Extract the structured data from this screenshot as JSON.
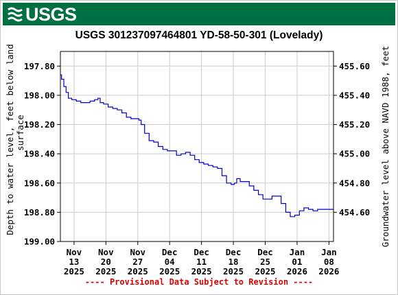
{
  "header": {
    "logo_text": "USGS",
    "banner_color": "#006f41"
  },
  "title": "USGS 301237097464801 YD-58-50-301 (Lovelady)",
  "footer": {
    "text": "---- Provisional Data Subject to Revision ----",
    "color": "#dd0000"
  },
  "chart_data": {
    "type": "line",
    "title": "USGS 301237097464801 YD-58-50-301 (Lovelady)",
    "xlabel": "",
    "ylabel": "Depth to water level, feet below land surface",
    "ylabel_right": "Groundwater level above NAVD 1988, feet",
    "y_inverted": true,
    "ylim": [
      197.7,
      199.0
    ],
    "xlim": [
      "2025-11-10",
      "2026-01-09"
    ],
    "y_ticks": [
      "197.80",
      "198.00",
      "198.20",
      "198.40",
      "198.60",
      "198.80",
      "199.00"
    ],
    "y2_ticks": [
      "455.60",
      "455.40",
      "455.20",
      "455.00",
      "454.80",
      "454.60"
    ],
    "x_ticks": [
      {
        "date": "2025-11-13",
        "label": [
          "Nov",
          "13",
          "2025"
        ]
      },
      {
        "date": "2025-11-20",
        "label": [
          "Nov",
          "20",
          "2025"
        ]
      },
      {
        "date": "2025-11-27",
        "label": [
          "Nov",
          "27",
          "2025"
        ]
      },
      {
        "date": "2025-12-04",
        "label": [
          "Dec",
          "04",
          "2025"
        ]
      },
      {
        "date": "2025-12-11",
        "label": [
          "Dec",
          "11",
          "2025"
        ]
      },
      {
        "date": "2025-12-18",
        "label": [
          "Dec",
          "18",
          "2025"
        ]
      },
      {
        "date": "2025-12-25",
        "label": [
          "Dec",
          "25",
          "2025"
        ]
      },
      {
        "date": "2026-01-01",
        "label": [
          "Jan",
          "01",
          "2026"
        ]
      },
      {
        "date": "2026-01-08",
        "label": [
          "Jan",
          "08",
          "2026"
        ]
      }
    ],
    "grid": true,
    "line_color": "#0000cc",
    "series": [
      {
        "x": [
          "2025-11-10T00:00",
          "2025-11-10T12:00",
          "2025-11-11T00:00",
          "2025-11-11T12:00",
          "2025-11-12T00:00",
          "2025-11-13T00:00",
          "2025-11-14T00:00",
          "2025-11-15T00:00",
          "2025-11-16T00:00",
          "2025-11-17T00:00",
          "2025-11-18T00:00",
          "2025-11-18T12:00",
          "2025-11-19T00:00",
          "2025-11-20T00:00",
          "2025-11-21T00:00",
          "2025-11-22T00:00",
          "2025-11-23T00:00",
          "2025-11-24T00:00",
          "2025-11-25T00:00",
          "2025-11-26T00:00",
          "2025-11-27T00:00",
          "2025-11-27T12:00",
          "2025-11-28T00:00",
          "2025-11-29T00:00",
          "2025-11-30T00:00",
          "2025-12-01T00:00",
          "2025-12-02T00:00",
          "2025-12-03T00:00",
          "2025-12-04T00:00",
          "2025-12-05T00:00",
          "2025-12-06T00:00",
          "2025-12-07T00:00",
          "2025-12-08T00:00",
          "2025-12-09T00:00",
          "2025-12-10T00:00",
          "2025-12-11T00:00",
          "2025-12-12T00:00",
          "2025-12-13T00:00",
          "2025-12-14T00:00",
          "2025-12-15T00:00",
          "2025-12-16T00:00",
          "2025-12-17T00:00",
          "2025-12-18T00:00",
          "2025-12-18T12:00",
          "2025-12-19T00:00",
          "2025-12-20T00:00",
          "2025-12-21T00:00",
          "2025-12-22T00:00",
          "2025-12-23T00:00",
          "2025-12-24T00:00",
          "2025-12-25T00:00",
          "2025-12-26T00:00",
          "2025-12-27T00:00",
          "2025-12-28T00:00",
          "2025-12-29T00:00",
          "2025-12-30T00:00",
          "2025-12-31T00:00",
          "2026-01-01T00:00",
          "2026-01-02T00:00",
          "2026-01-03T00:00",
          "2026-01-04T00:00",
          "2026-01-05T00:00",
          "2026-01-06T00:00",
          "2026-01-07T00:00",
          "2026-01-08T00:00",
          "2026-01-09T00:00"
        ],
        "y": [
          197.86,
          197.89,
          197.94,
          197.98,
          198.02,
          198.03,
          198.04,
          198.05,
          198.05,
          198.04,
          198.03,
          198.02,
          198.05,
          198.06,
          198.08,
          198.09,
          198.1,
          198.12,
          198.15,
          198.16,
          198.16,
          198.17,
          198.2,
          198.26,
          198.31,
          198.32,
          198.35,
          198.37,
          198.38,
          198.38,
          198.41,
          198.4,
          198.39,
          198.41,
          198.44,
          198.46,
          198.47,
          198.48,
          198.49,
          198.5,
          198.55,
          198.6,
          198.61,
          198.6,
          198.57,
          198.59,
          198.59,
          198.62,
          198.65,
          198.68,
          198.71,
          198.71,
          198.69,
          198.69,
          198.74,
          198.8,
          198.83,
          198.82,
          198.79,
          198.77,
          198.78,
          198.79,
          198.78,
          198.78,
          198.78,
          198.78
        ]
      }
    ]
  }
}
